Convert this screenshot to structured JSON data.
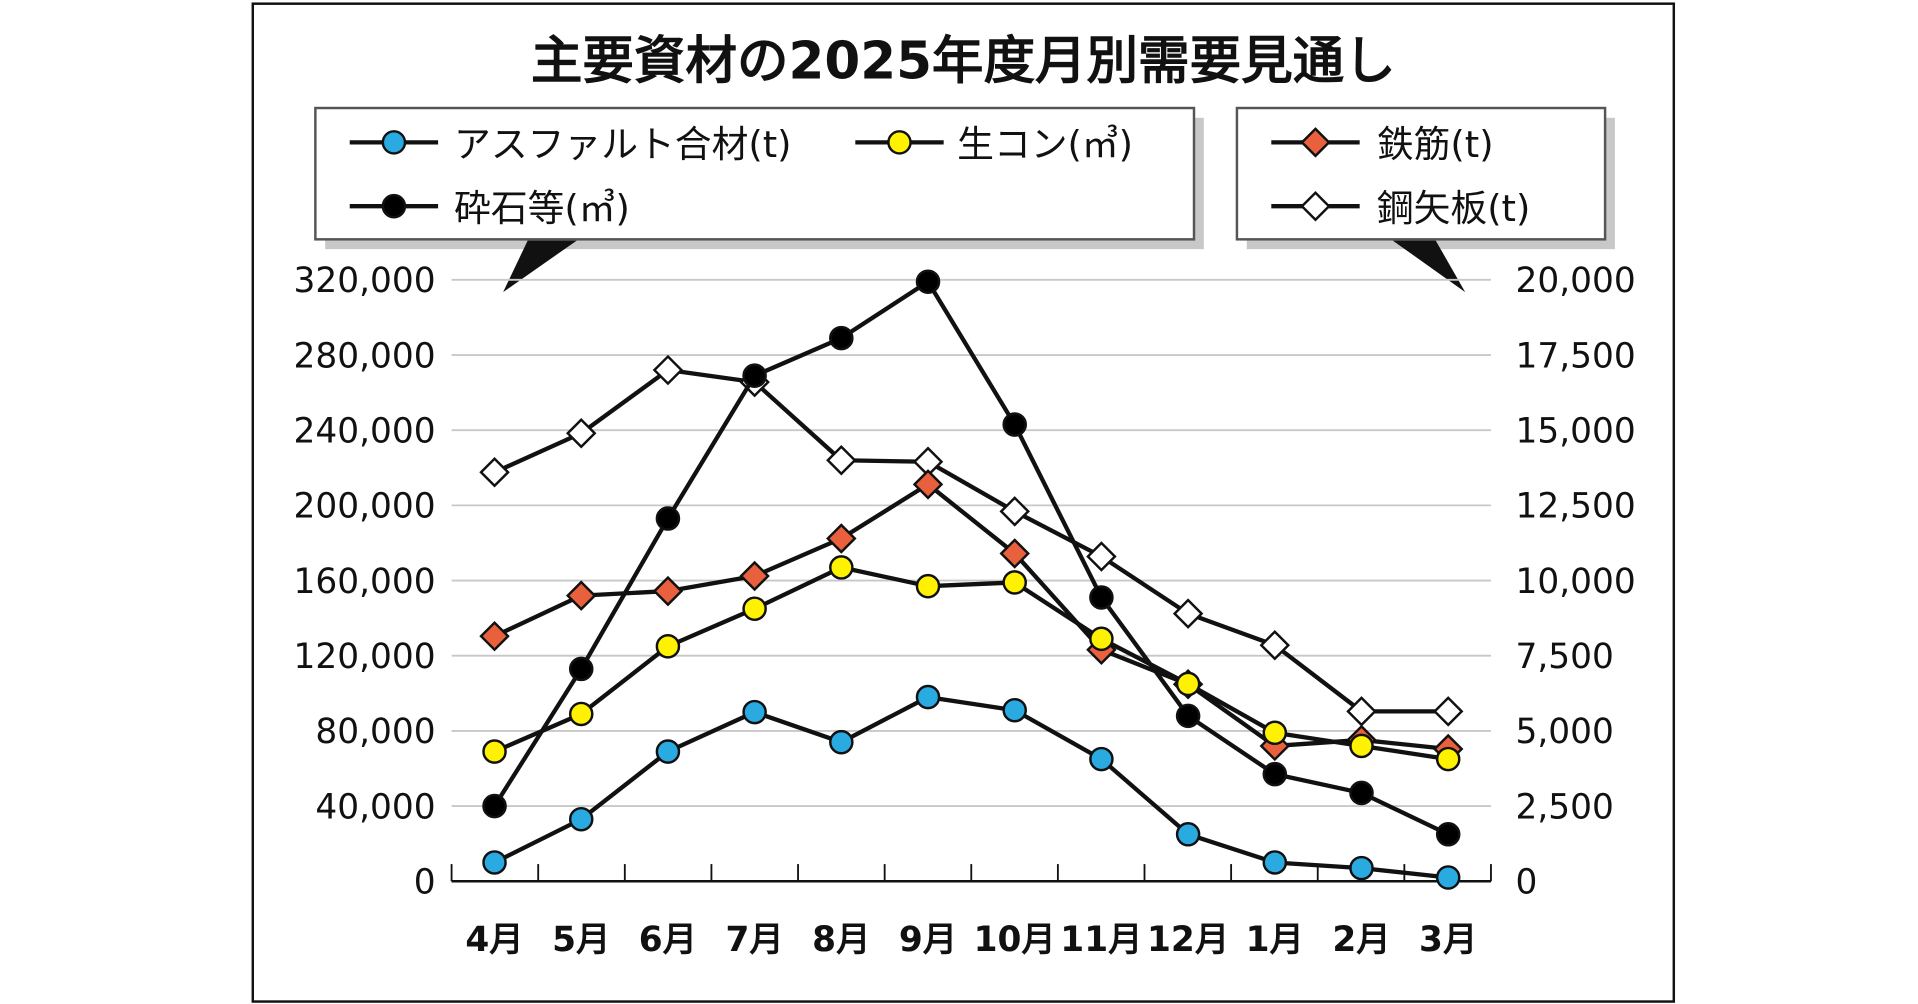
{
  "chart_data": {
    "type": "line",
    "title": "主要資材の2025年度月別需要見通し",
    "categories": [
      "4月",
      "5月",
      "6月",
      "7月",
      "8月",
      "9月",
      "10月",
      "11月",
      "12月",
      "1月",
      "2月",
      "3月"
    ],
    "y_left": {
      "range": [
        0,
        320000
      ],
      "ticks": [
        "0",
        "40,000",
        "80,000",
        "120,000",
        "160,000",
        "200,000",
        "240,000",
        "280,000",
        "320,000"
      ]
    },
    "y_right": {
      "range": [
        0,
        20000
      ],
      "ticks": [
        "0",
        "2,500",
        "5,000",
        "7,500",
        "10,000",
        "12,500",
        "15,000",
        "17,500",
        "20,000"
      ]
    },
    "grid": true,
    "legend_left": [
      "アスファルト合材(t)",
      "生コン(㎥)",
      "砕石等(㎥)"
    ],
    "legend_right": [
      "鉄筋(t)",
      "鋼矢板(t)"
    ],
    "series": [
      {
        "name": "アスファルト合材(t)",
        "axis": "left",
        "marker": "circle",
        "color": "#29abe2",
        "values": [
          10000,
          33000,
          69000,
          90000,
          74000,
          98000,
          91000,
          65000,
          25000,
          10000,
          7000,
          2000
        ]
      },
      {
        "name": "生コン(㎥)",
        "axis": "left",
        "marker": "circle",
        "color": "#fff200",
        "values": [
          69000,
          89000,
          125000,
          145000,
          167000,
          157000,
          159000,
          129000,
          105000,
          79000,
          72000,
          65000
        ]
      },
      {
        "name": "砕石等(㎥)",
        "axis": "left",
        "marker": "circle",
        "color": "#000000",
        "values": [
          40000,
          113000,
          193000,
          269000,
          289000,
          319000,
          243000,
          151000,
          88000,
          57000,
          47000,
          25000
        ]
      },
      {
        "name": "鉄筋(t)",
        "axis": "right",
        "marker": "diamond",
        "color": "#e8603c",
        "values": [
          8150,
          9500,
          9650,
          10150,
          11400,
          13200,
          10900,
          7700,
          6550,
          4500,
          4700,
          4400
        ]
      },
      {
        "name": "鋼矢板(t)",
        "axis": "right",
        "marker": "diamond",
        "color": "#ffffff",
        "values": [
          13600,
          14900,
          17000,
          16600,
          14000,
          13950,
          12300,
          10800,
          8900,
          7850,
          5650,
          5650
        ]
      }
    ]
  }
}
